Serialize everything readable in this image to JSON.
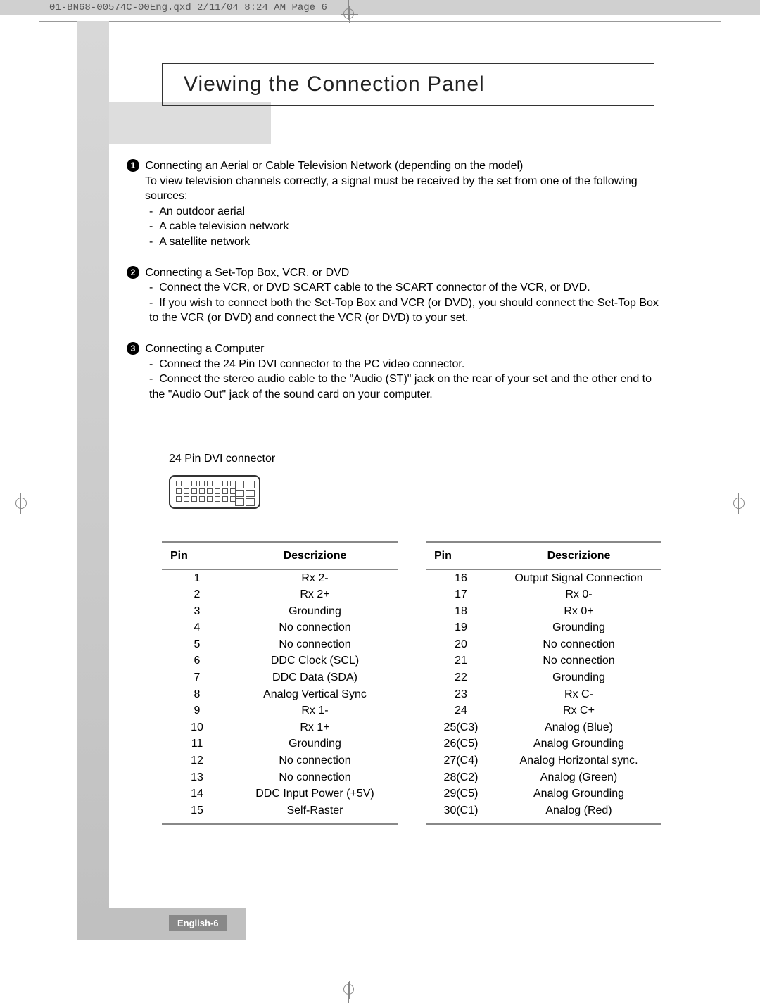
{
  "header_strip": "01-BN68-00574C-00Eng.qxd  2/11/04 8:24 AM  Page 6",
  "title": "Viewing the Connection Panel",
  "sections": [
    {
      "num": "1",
      "heading": "Connecting an Aerial or Cable Television Network (depending on the model)",
      "body": "To view television channels correctly, a signal must be received by the set from one of the following sources:",
      "items": [
        "An outdoor aerial",
        "A cable television network",
        "A satellite network"
      ]
    },
    {
      "num": "2",
      "heading": "Connecting a Set-Top Box, VCR, or DVD",
      "body": "",
      "items": [
        "Connect the VCR, or DVD SCART cable to the SCART connector of the VCR, or DVD.",
        "If you wish to connect both the Set-Top Box and VCR (or DVD), you should connect the Set-Top Box to the VCR (or DVD) and connect the VCR (or DVD) to your set."
      ]
    },
    {
      "num": "3",
      "heading": "Connecting a Computer",
      "body": "",
      "items": [
        "Connect the 24 Pin DVI connector to the PC video connector.",
        "Connect the stereo audio cable to the \"Audio (ST)\" jack on the rear of your set and the other end to the \"Audio Out\" jack of the sound card on your computer."
      ]
    }
  ],
  "connector_label": "24 Pin  DVI connector",
  "table_headers": {
    "pin": "Pin",
    "desc": "Descrizione"
  },
  "left_table": [
    {
      "pin": "1",
      "desc": "Rx 2-"
    },
    {
      "pin": "2",
      "desc": "Rx 2+"
    },
    {
      "pin": "3",
      "desc": "Grounding"
    },
    {
      "pin": "4",
      "desc": "No connection"
    },
    {
      "pin": "5",
      "desc": "No connection"
    },
    {
      "pin": "6",
      "desc": "DDC Clock (SCL)"
    },
    {
      "pin": "7",
      "desc": "DDC Data (SDA)"
    },
    {
      "pin": "8",
      "desc": "Analog Vertical Sync"
    },
    {
      "pin": "9",
      "desc": "Rx 1-"
    },
    {
      "pin": "10",
      "desc": "Rx 1+"
    },
    {
      "pin": "11",
      "desc": "Grounding"
    },
    {
      "pin": "12",
      "desc": "No connection"
    },
    {
      "pin": "13",
      "desc": "No connection"
    },
    {
      "pin": "14",
      "desc": "DDC Input Power (+5V)"
    },
    {
      "pin": "15",
      "desc": "Self-Raster"
    }
  ],
  "right_table": [
    {
      "pin": "16",
      "desc": "Output Signal Connection"
    },
    {
      "pin": "17",
      "desc": "Rx 0-"
    },
    {
      "pin": "18",
      "desc": "Rx 0+"
    },
    {
      "pin": "19",
      "desc": "Grounding"
    },
    {
      "pin": "20",
      "desc": "No connection"
    },
    {
      "pin": "21",
      "desc": "No connection"
    },
    {
      "pin": "22",
      "desc": "Grounding"
    },
    {
      "pin": "23",
      "desc": "Rx C-"
    },
    {
      "pin": "24",
      "desc": "Rx C+"
    },
    {
      "pin": "25(C3)",
      "desc": "Analog (Blue)"
    },
    {
      "pin": "26(C5)",
      "desc": "Analog Grounding"
    },
    {
      "pin": "27(C4)",
      "desc": "Analog Horizontal sync."
    },
    {
      "pin": "28(C2)",
      "desc": "Analog (Green)"
    },
    {
      "pin": "29(C5)",
      "desc": "Analog Grounding"
    },
    {
      "pin": "30(C1)",
      "desc": "Analog (Red)"
    }
  ],
  "page_label": "English-6",
  "colors": {
    "header_bg": "#d0d0d0",
    "sidebar_bg": "#c8c8c8",
    "rule": "#888888",
    "page_label_bg": "#888888"
  }
}
